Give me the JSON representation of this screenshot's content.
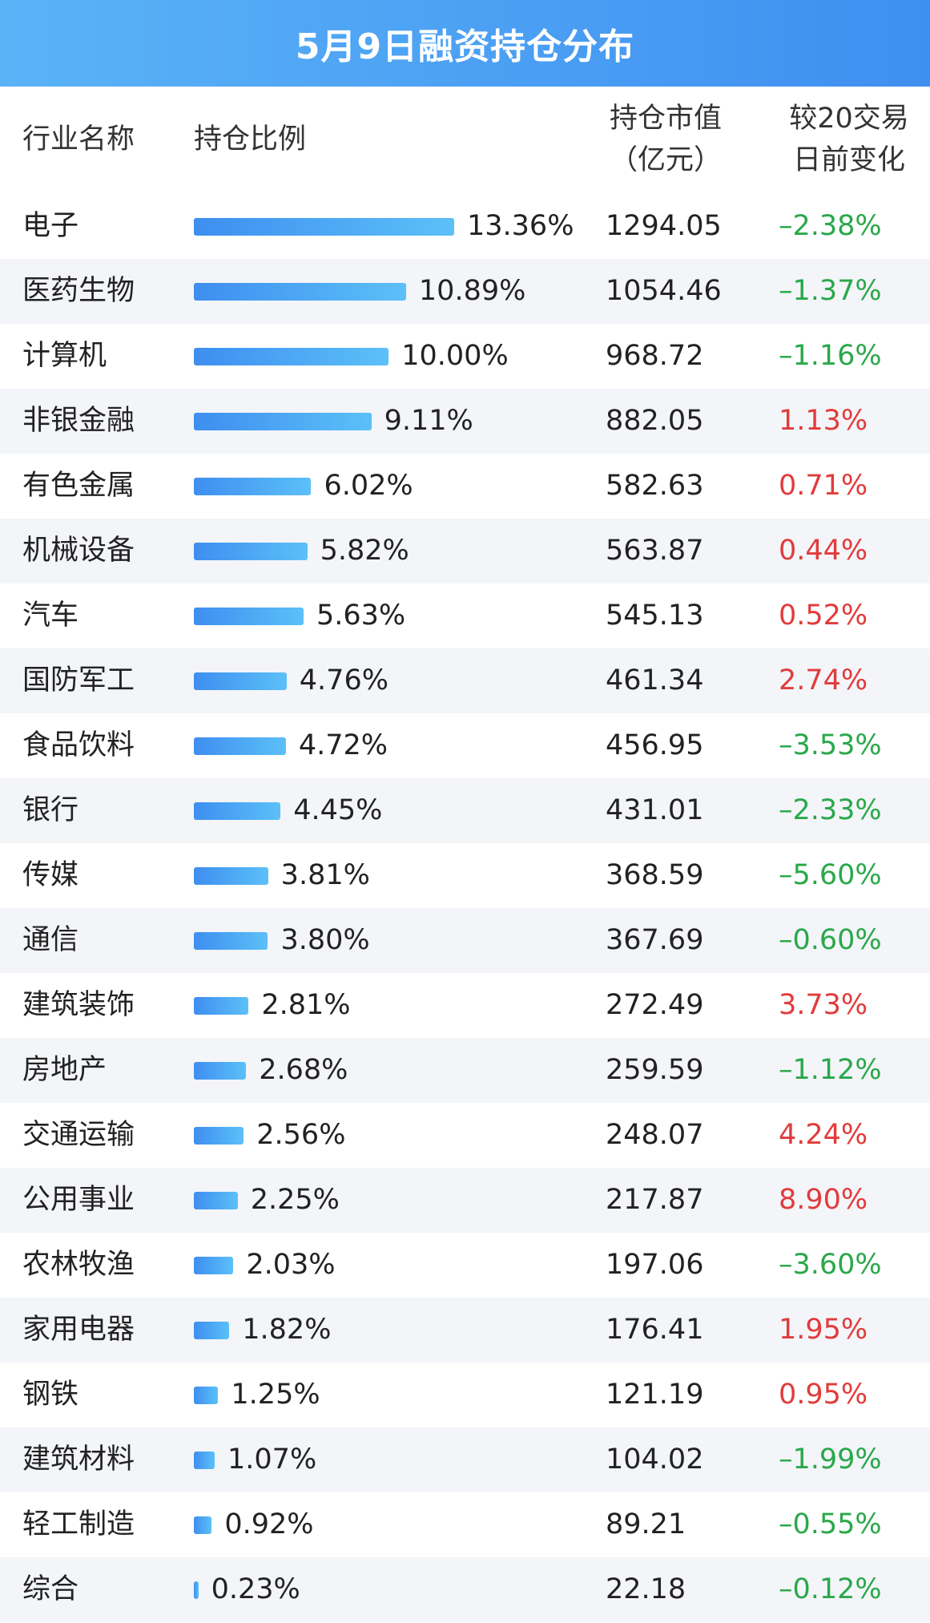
{
  "title": "5月9日融资持仓分布",
  "header": {
    "industry": "行业名称",
    "ratio": "持仓比例",
    "value_line1": "持仓市值",
    "value_line2": "（亿元）",
    "change_line1": "较20交易",
    "change_line2": "日前变化"
  },
  "colors": {
    "title_bg": "#4a9ff3",
    "bar": "#3e8ef0",
    "positive": "#e23b3b",
    "negative": "#2aa84a",
    "stripe": "#f3f5f9"
  },
  "chart_data": {
    "type": "bar",
    "title": "5月9日融资持仓分布",
    "categories": [
      "电子",
      "医药生物",
      "计算机",
      "非银金融",
      "有色金属",
      "机械设备",
      "汽车",
      "国防军工",
      "食品饮料",
      "银行",
      "传媒",
      "通信",
      "建筑装饰",
      "房地产",
      "交通运输",
      "公用事业",
      "农林牧渔",
      "家用电器",
      "钢铁",
      "建筑材料",
      "轻工制造",
      "综合"
    ],
    "series": [
      {
        "values": [
          13.36,
          10.89,
          10.0,
          9.11,
          6.02,
          5.82,
          5.63,
          4.76,
          4.72,
          4.45,
          3.81,
          3.8,
          2.81,
          2.68,
          2.56,
          2.25,
          2.03,
          1.82,
          1.25,
          1.07,
          0.92,
          0.23
        ]
      }
    ],
    "ratio_labels": [
      "13.36%",
      "10.89%",
      "10.00%",
      "9.11%",
      "6.02%",
      "5.82%",
      "5.63%",
      "4.76%",
      "4.72%",
      "4.45%",
      "3.81%",
      "3.80%",
      "2.81%",
      "2.68%",
      "2.56%",
      "2.25%",
      "2.03%",
      "1.82%",
      "1.25%",
      "1.07%",
      "0.92%",
      "0.23%"
    ],
    "market_value": [
      "1294.05",
      "1054.46",
      "968.72",
      "882.05",
      "582.63",
      "563.87",
      "545.13",
      "461.34",
      "456.95",
      "431.01",
      "368.59",
      "367.69",
      "272.49",
      "259.59",
      "248.07",
      "217.87",
      "197.06",
      "176.41",
      "121.19",
      "104.02",
      "89.21",
      "22.18"
    ],
    "change": [
      "–2.38%",
      "–1.37%",
      "–1.16%",
      "1.13%",
      "0.71%",
      "0.44%",
      "0.52%",
      "2.74%",
      "–3.53%",
      "–2.33%",
      "–5.60%",
      "–0.60%",
      "3.73%",
      "–1.12%",
      "4.24%",
      "8.90%",
      "–3.60%",
      "1.95%",
      "0.95%",
      "–1.99%",
      "–0.55%",
      "–0.12%"
    ],
    "change_values": [
      -2.38,
      -1.37,
      -1.16,
      1.13,
      0.71,
      0.44,
      0.52,
      2.74,
      -3.53,
      -2.33,
      -5.6,
      -0.6,
      3.73,
      -1.12,
      4.24,
      8.9,
      -3.6,
      1.95,
      0.95,
      -1.99,
      -0.55,
      -0.12
    ]
  }
}
